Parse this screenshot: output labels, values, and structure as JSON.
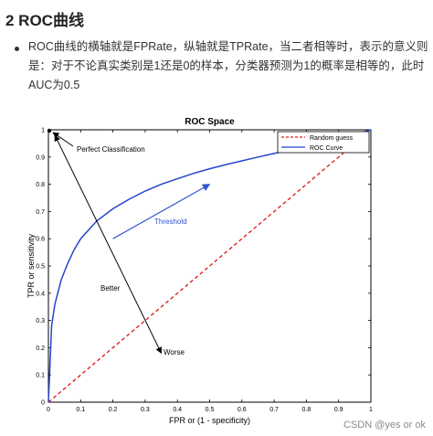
{
  "section": {
    "title": "2 ROC曲线",
    "lines": [
      "ROC曲线的横轴就是FPRate，纵轴就是TPRate，当二者相等时，表示的意义则",
      "是：对于不论真实类别是1还是0的样本，分类器预测为1的概率是相等的，此时",
      "AUC为0.5"
    ]
  },
  "watermark": "CSDN @yes or ok",
  "colors": {
    "roc_curve": "#2244cc",
    "random_guess": "#dd2222",
    "arrow": "#3355cc"
  },
  "chart_data": {
    "type": "line",
    "title": "ROC Space",
    "xlabel": "FPR or (1 - specificity)",
    "ylabel": "TPR or sensitivity",
    "xlim": [
      0,
      1
    ],
    "ylim": [
      0,
      1
    ],
    "xticks": [
      "0",
      "0.1",
      "0.2",
      "0.3",
      "0.4",
      "0.5",
      "0.6",
      "0.7",
      "0.8",
      "0.9",
      "1"
    ],
    "yticks": [
      "0",
      "0.1",
      "0.2",
      "0.3",
      "0.4",
      "0.5",
      "0.6",
      "0.7",
      "0.8",
      "0.9",
      "1"
    ],
    "grid": false,
    "legend_position": "top-right",
    "series": [
      {
        "name": "Random guess",
        "style": "dashed",
        "color": "#dd2222",
        "x": [
          0,
          1
        ],
        "y": [
          0,
          1
        ]
      },
      {
        "name": "ROC Curve",
        "style": "solid",
        "color": "#2244cc",
        "x": [
          0,
          0.01,
          0.02,
          0.04,
          0.06,
          0.08,
          0.1,
          0.15,
          0.2,
          0.25,
          0.3,
          0.35,
          0.4,
          0.45,
          0.5,
          0.55,
          0.6,
          0.65,
          0.7,
          0.75,
          0.8,
          0.85,
          0.9,
          0.95,
          1.0
        ],
        "y": [
          0,
          0.28,
          0.36,
          0.45,
          0.51,
          0.56,
          0.6,
          0.665,
          0.71,
          0.745,
          0.775,
          0.8,
          0.82,
          0.84,
          0.857,
          0.872,
          0.886,
          0.9,
          0.913,
          0.926,
          0.938,
          0.95,
          0.965,
          0.983,
          1.0
        ]
      }
    ],
    "annotations": {
      "perfect": {
        "label": "Perfect Classification",
        "point": [
          0,
          1
        ]
      },
      "threshold": {
        "label": "Threshold",
        "from": [
          0.2,
          0.6
        ],
        "to": [
          0.5,
          0.8
        ]
      },
      "better": {
        "label": "Better"
      },
      "worse": {
        "label": "Worse"
      },
      "direction_arrow": {
        "from": [
          0.35,
          0.18
        ],
        "to": [
          0.02,
          0.98
        ]
      }
    }
  }
}
